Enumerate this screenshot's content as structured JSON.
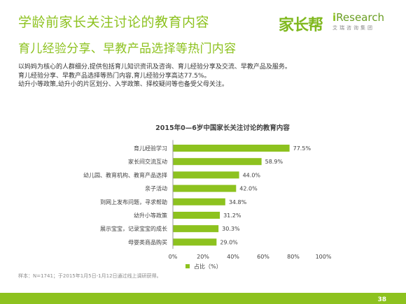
{
  "header": {
    "title": "学龄前家长关注讨论的教育内容",
    "subtitle": "育儿经验分享、早教产品选择等热门内容",
    "logo_jiazhangbang": "家长帮",
    "logo_iresearch_brand": "Research",
    "logo_iresearch_i": "i",
    "logo_iresearch_cn": "艾瑞咨询集团"
  },
  "description": [
    "以妈妈为核心的人群细分,提供包括育儿知识资讯及咨询、育儿经验分享及交流、早教产品及服务。",
    "育儿经验分享、早教产品选择等热门内容,育儿经验分享高达77.5%。",
    "幼升小等政策,幼升小的片区划分、入学政策、择校疑问等也备受父母关注。"
  ],
  "chart_data": {
    "type": "bar",
    "orientation": "horizontal",
    "title": "2015年0—6岁中国家长关注讨论的教育内容",
    "categories": [
      "育儿经验学习",
      "家长间交流互动",
      "幼儿园、教育机构、教育产品选择",
      "亲子活动",
      "到网上发布问题，寻求帮助",
      "幼升小等政策",
      "展示宝宝，记录宝宝的成长",
      "母婴类商品购买"
    ],
    "series": [
      {
        "name": "占比（%）",
        "values": [
          77.5,
          58.9,
          44.0,
          42.0,
          34.8,
          31.2,
          30.3,
          29.0
        ],
        "labels": [
          "77.5%",
          "58.9%",
          "44.0%",
          "42.0%",
          "34.8%",
          "31.2%",
          "30.3%",
          "29.0%"
        ]
      }
    ],
    "xlim": [
      0,
      100
    ],
    "xticks": [
      "0%",
      "20%",
      "40%",
      "60%",
      "80%",
      "100%"
    ],
    "grid": false,
    "legend": "bottom",
    "bar_color": "#8dc21f"
  },
  "footer": {
    "note": "样本：N=1741；于2015年1月5日-1月12日通过线上调研获得。",
    "page": "38"
  },
  "colors": {
    "accent": "#8dc21f"
  }
}
